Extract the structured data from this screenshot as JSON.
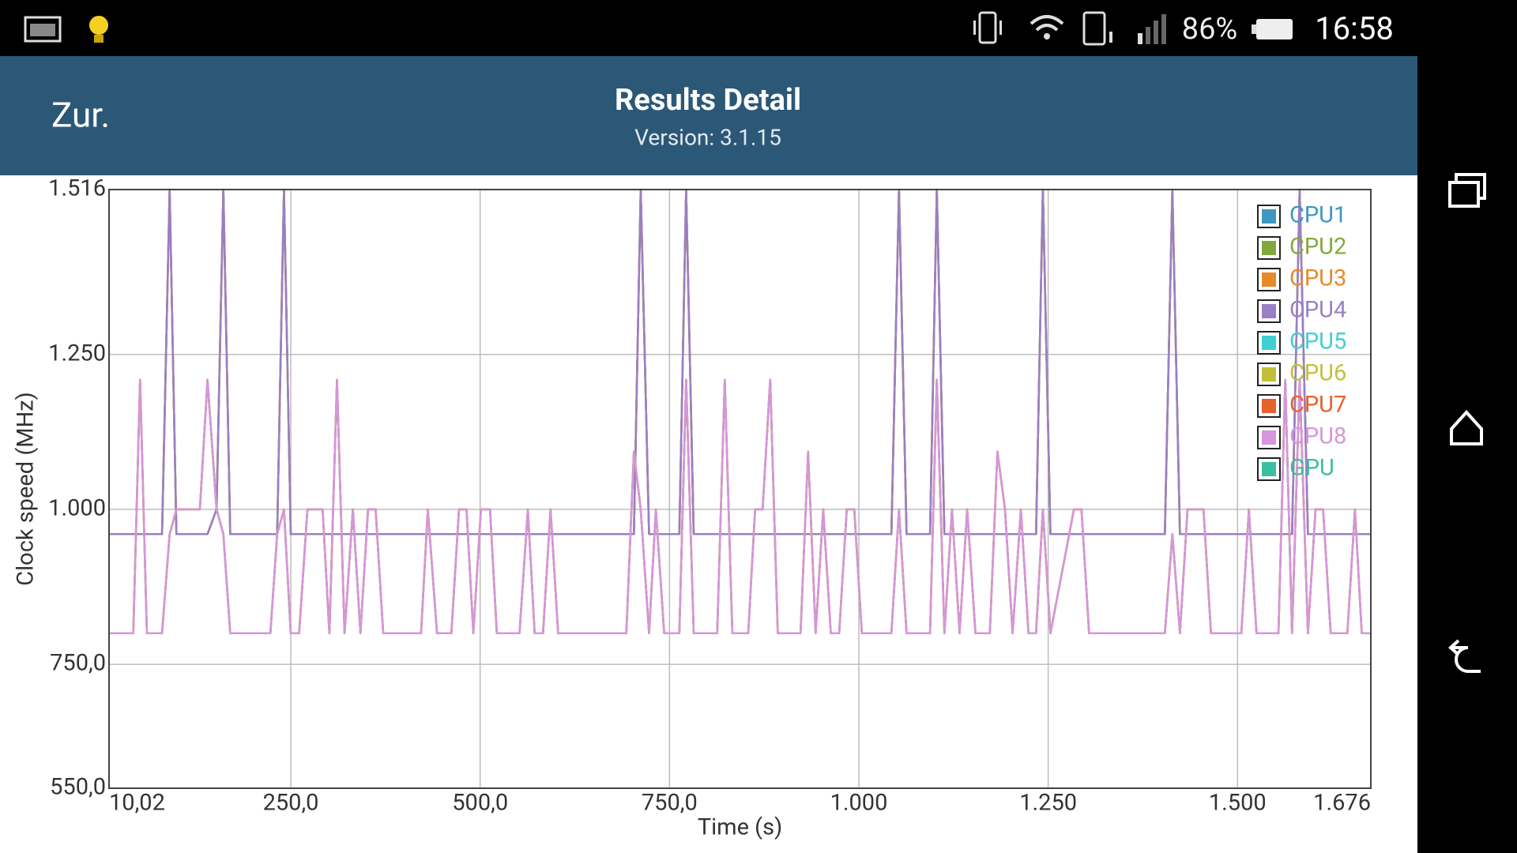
{
  "status_bar": {
    "battery": "86%",
    "time": "16:58"
  },
  "app_bar": {
    "back": "Zur.",
    "title": "Results Detail",
    "subtitle": "Version: 3.1.15"
  },
  "chart_data": {
    "type": "line",
    "xlabel": "Time (s)",
    "ylabel": "Clock speed (MHz)",
    "grid": true,
    "legend": "upper right",
    "xlim": [
      10.02,
      1676
    ],
    "xticks": [
      {
        "value": 10.02,
        "label": "10,02"
      },
      {
        "value": 250,
        "label": "250,0"
      },
      {
        "value": 500,
        "label": "500,0"
      },
      {
        "value": 750,
        "label": "750,0"
      },
      {
        "value": 1000,
        "label": "1.000"
      },
      {
        "value": 1250,
        "label": "1.250"
      },
      {
        "value": 1500,
        "label": "1.500"
      },
      {
        "value": 1676,
        "label": "1.676"
      }
    ],
    "ylim": [
      550,
      1516
    ],
    "yticks": [
      {
        "value": 1516,
        "label": "1.516"
      },
      {
        "value": 1250,
        "label": "1.250"
      },
      {
        "value": 1000,
        "label": "1.000"
      },
      {
        "value": 750,
        "label": "750,0"
      },
      {
        "value": 550,
        "label": "550,0"
      }
    ],
    "x": [
      10.02,
      42,
      51,
      60,
      80,
      90,
      99,
      130,
      140,
      152,
      161,
      170,
      223,
      232,
      241,
      250,
      261,
      272,
      292,
      301,
      311,
      321,
      332,
      342,
      352,
      362,
      372,
      422,
      431,
      443,
      462,
      472,
      482,
      491,
      501,
      513,
      522,
      552,
      563,
      572,
      583,
      593,
      603,
      693,
      703,
      712,
      723,
      732,
      743,
      763,
      772,
      782,
      813,
      823,
      833,
      854,
      863,
      873,
      883,
      893,
      923,
      933,
      943,
      953,
      963,
      974,
      984,
      994,
      1004,
      1043,
      1053,
      1063,
      1094,
      1103,
      1113,
      1123,
      1133,
      1143,
      1154,
      1173,
      1183,
      1193,
      1203,
      1214,
      1224,
      1234,
      1243,
      1253,
      1284,
      1294,
      1304,
      1404,
      1414,
      1424,
      1434,
      1455,
      1465,
      1505,
      1515,
      1525,
      1554,
      1563,
      1572,
      1582,
      1593,
      1603,
      1613,
      1623,
      1645,
      1655,
      1664,
      1676
    ],
    "series": [
      {
        "name": "CPU1",
        "color": "#3d97c0",
        "values": [
          960,
          960,
          960,
          960,
          960,
          1516,
          960,
          960,
          960,
          1000,
          1516,
          960,
          960,
          960,
          1516,
          960,
          960,
          960,
          960,
          960,
          960,
          960,
          960,
          960,
          960,
          960,
          960,
          960,
          960,
          960,
          960,
          960,
          960,
          960,
          960,
          960,
          960,
          960,
          960,
          960,
          960,
          960,
          960,
          960,
          960,
          1516,
          960,
          960,
          960,
          960,
          1516,
          960,
          960,
          960,
          960,
          960,
          960,
          960,
          960,
          960,
          960,
          960,
          960,
          960,
          960,
          960,
          960,
          960,
          960,
          960,
          1516,
          960,
          960,
          1516,
          960,
          960,
          960,
          960,
          960,
          960,
          960,
          960,
          960,
          960,
          960,
          960,
          1516,
          960,
          960,
          960,
          960,
          960,
          1516,
          960,
          960,
          960,
          960,
          960,
          960,
          960,
          960,
          960,
          960,
          1516,
          960,
          960,
          960,
          960,
          960,
          960,
          960,
          960
        ]
      },
      {
        "name": "CPU2",
        "color": "#82a83b",
        "values": [
          960,
          960,
          960,
          960,
          960,
          1516,
          960,
          960,
          960,
          1000,
          1516,
          960,
          960,
          960,
          1516,
          960,
          960,
          960,
          960,
          960,
          960,
          960,
          960,
          960,
          960,
          960,
          960,
          960,
          960,
          960,
          960,
          960,
          960,
          960,
          960,
          960,
          960,
          960,
          960,
          960,
          960,
          960,
          960,
          960,
          960,
          1516,
          960,
          960,
          960,
          960,
          1516,
          960,
          960,
          960,
          960,
          960,
          960,
          960,
          960,
          960,
          960,
          960,
          960,
          960,
          960,
          960,
          960,
          960,
          960,
          960,
          1516,
          960,
          960,
          1516,
          960,
          960,
          960,
          960,
          960,
          960,
          960,
          960,
          960,
          960,
          960,
          960,
          1516,
          960,
          960,
          960,
          960,
          960,
          1516,
          960,
          960,
          960,
          960,
          960,
          960,
          960,
          960,
          960,
          960,
          1516,
          960,
          960,
          960,
          960,
          960,
          960,
          960,
          960
        ]
      },
      {
        "name": "CPU3",
        "color": "#e8892a",
        "values": [
          960,
          960,
          960,
          960,
          960,
          1516,
          960,
          960,
          960,
          1000,
          1516,
          960,
          960,
          960,
          1516,
          960,
          960,
          960,
          960,
          960,
          960,
          960,
          960,
          960,
          960,
          960,
          960,
          960,
          960,
          960,
          960,
          960,
          960,
          960,
          960,
          960,
          960,
          960,
          960,
          960,
          960,
          960,
          960,
          960,
          960,
          1516,
          960,
          960,
          960,
          960,
          1516,
          960,
          960,
          960,
          960,
          960,
          960,
          960,
          960,
          960,
          960,
          960,
          960,
          960,
          960,
          960,
          960,
          960,
          960,
          960,
          1516,
          960,
          960,
          1516,
          960,
          960,
          960,
          960,
          960,
          960,
          960,
          960,
          960,
          960,
          960,
          960,
          1516,
          960,
          960,
          960,
          960,
          960,
          1516,
          960,
          960,
          960,
          960,
          960,
          960,
          960,
          960,
          960,
          960,
          1516,
          960,
          960,
          960,
          960,
          960,
          960,
          960,
          960
        ]
      },
      {
        "name": "CPU4",
        "color": "#9b7fc4",
        "values": [
          960,
          960,
          960,
          960,
          960,
          1516,
          960,
          960,
          960,
          1000,
          1516,
          960,
          960,
          960,
          1516,
          960,
          960,
          960,
          960,
          960,
          960,
          960,
          960,
          960,
          960,
          960,
          960,
          960,
          960,
          960,
          960,
          960,
          960,
          960,
          960,
          960,
          960,
          960,
          960,
          960,
          960,
          960,
          960,
          960,
          960,
          1516,
          960,
          960,
          960,
          960,
          1516,
          960,
          960,
          960,
          960,
          960,
          960,
          960,
          960,
          960,
          960,
          960,
          960,
          960,
          960,
          960,
          960,
          960,
          960,
          960,
          1516,
          960,
          960,
          1516,
          960,
          960,
          960,
          960,
          960,
          960,
          960,
          960,
          960,
          960,
          960,
          960,
          1516,
          960,
          960,
          960,
          960,
          960,
          1516,
          960,
          960,
          960,
          960,
          960,
          960,
          960,
          960,
          960,
          960,
          1516,
          960,
          960,
          960,
          960,
          960,
          960,
          960,
          960
        ]
      },
      {
        "name": "CPU5",
        "color": "#3fcfd4",
        "values": [
          800,
          800,
          1209,
          800,
          800,
          960,
          1000,
          1000,
          1209,
          1000,
          960,
          800,
          800,
          960,
          1000,
          800,
          800,
          1000,
          1000,
          800,
          1209,
          800,
          1000,
          800,
          1000,
          1000,
          800,
          800,
          1000,
          800,
          800,
          1000,
          1000,
          800,
          1000,
          1000,
          800,
          800,
          1000,
          800,
          800,
          1000,
          800,
          800,
          1093,
          1000,
          800,
          1000,
          800,
          800,
          1209,
          800,
          800,
          1209,
          800,
          800,
          1000,
          1000,
          1209,
          800,
          800,
          1093,
          800,
          1000,
          800,
          800,
          1000,
          1000,
          800,
          800,
          1000,
          800,
          800,
          1209,
          800,
          1000,
          800,
          1000,
          800,
          800,
          1093,
          1000,
          800,
          1000,
          800,
          800,
          1000,
          800,
          1000,
          1000,
          800,
          800,
          960,
          800,
          1000,
          1000,
          800,
          800,
          1000,
          800,
          800,
          1209,
          800,
          1209,
          800,
          1000,
          1000,
          800,
          800,
          1000,
          800,
          800
        ]
      },
      {
        "name": "CPU6",
        "color": "#c2c03a",
        "values": [
          800,
          800,
          1209,
          800,
          800,
          960,
          1000,
          1000,
          1209,
          1000,
          960,
          800,
          800,
          960,
          1000,
          800,
          800,
          1000,
          1000,
          800,
          1209,
          800,
          1000,
          800,
          1000,
          1000,
          800,
          800,
          1000,
          800,
          800,
          1000,
          1000,
          800,
          1000,
          1000,
          800,
          800,
          1000,
          800,
          800,
          1000,
          800,
          800,
          1093,
          1000,
          800,
          1000,
          800,
          800,
          1209,
          800,
          800,
          1209,
          800,
          800,
          1000,
          1000,
          1209,
          800,
          800,
          1093,
          800,
          1000,
          800,
          800,
          1000,
          1000,
          800,
          800,
          1000,
          800,
          800,
          1209,
          800,
          1000,
          800,
          1000,
          800,
          800,
          1093,
          1000,
          800,
          1000,
          800,
          800,
          1000,
          800,
          1000,
          1000,
          800,
          800,
          960,
          800,
          1000,
          1000,
          800,
          800,
          1000,
          800,
          800,
          1209,
          800,
          1209,
          800,
          1000,
          1000,
          800,
          800,
          1000,
          800,
          800
        ]
      },
      {
        "name": "CPU7",
        "color": "#e8602b",
        "values": [
          800,
          800,
          1209,
          800,
          800,
          960,
          1000,
          1000,
          1209,
          1000,
          960,
          800,
          800,
          960,
          1000,
          800,
          800,
          1000,
          1000,
          800,
          1209,
          800,
          1000,
          800,
          1000,
          1000,
          800,
          800,
          1000,
          800,
          800,
          1000,
          1000,
          800,
          1000,
          1000,
          800,
          800,
          1000,
          800,
          800,
          1000,
          800,
          800,
          1093,
          1000,
          800,
          1000,
          800,
          800,
          1209,
          800,
          800,
          1209,
          800,
          800,
          1000,
          1000,
          1209,
          800,
          800,
          1093,
          800,
          1000,
          800,
          800,
          1000,
          1000,
          800,
          800,
          1000,
          800,
          800,
          1209,
          800,
          1000,
          800,
          1000,
          800,
          800,
          1093,
          1000,
          800,
          1000,
          800,
          800,
          1000,
          800,
          1000,
          1000,
          800,
          800,
          960,
          800,
          1000,
          1000,
          800,
          800,
          1000,
          800,
          800,
          1209,
          800,
          1209,
          800,
          1000,
          1000,
          800,
          800,
          1000,
          800,
          800
        ]
      },
      {
        "name": "CPU8",
        "color": "#d596dd",
        "values": [
          800,
          800,
          1209,
          800,
          800,
          960,
          1000,
          1000,
          1209,
          1000,
          960,
          800,
          800,
          960,
          1000,
          800,
          800,
          1000,
          1000,
          800,
          1209,
          800,
          1000,
          800,
          1000,
          1000,
          800,
          800,
          1000,
          800,
          800,
          1000,
          1000,
          800,
          1000,
          1000,
          800,
          800,
          1000,
          800,
          800,
          1000,
          800,
          800,
          1093,
          1000,
          800,
          1000,
          800,
          800,
          1209,
          800,
          800,
          1209,
          800,
          800,
          1000,
          1000,
          1209,
          800,
          800,
          1093,
          800,
          1000,
          800,
          800,
          1000,
          1000,
          800,
          800,
          1000,
          800,
          800,
          1209,
          800,
          1000,
          800,
          1000,
          800,
          800,
          1093,
          1000,
          800,
          1000,
          800,
          800,
          1000,
          800,
          1000,
          1000,
          800,
          800,
          960,
          800,
          1000,
          1000,
          800,
          800,
          1000,
          800,
          800,
          1209,
          800,
          1209,
          800,
          1000,
          1000,
          800,
          800,
          1000,
          800,
          800
        ]
      },
      {
        "name": "GPU",
        "color": "#3abfa0",
        "values": [
          null,
          null,
          null,
          null,
          null,
          null,
          null,
          null,
          null,
          null,
          null,
          null,
          null,
          null,
          null,
          null,
          null,
          null,
          null,
          null,
          null,
          null,
          null,
          null,
          null,
          null,
          null,
          null,
          null,
          null,
          null,
          null,
          null,
          null,
          null,
          null,
          null,
          null,
          null,
          null,
          null,
          null,
          null,
          null,
          null,
          null,
          null,
          null,
          null,
          null,
          null,
          null,
          null,
          null,
          null,
          null,
          null,
          null,
          null,
          null,
          null,
          null,
          null,
          null,
          null,
          null,
          null,
          null,
          null,
          null,
          null,
          null,
          null,
          null,
          null,
          null,
          null,
          null,
          null,
          null,
          null,
          null,
          null,
          null,
          null,
          null,
          null,
          null,
          null,
          null,
          null,
          null,
          null,
          null,
          null,
          null,
          null,
          null,
          null,
          null,
          null,
          null,
          null,
          null,
          null,
          null,
          null,
          null,
          null,
          null,
          null,
          null
        ]
      }
    ]
  }
}
